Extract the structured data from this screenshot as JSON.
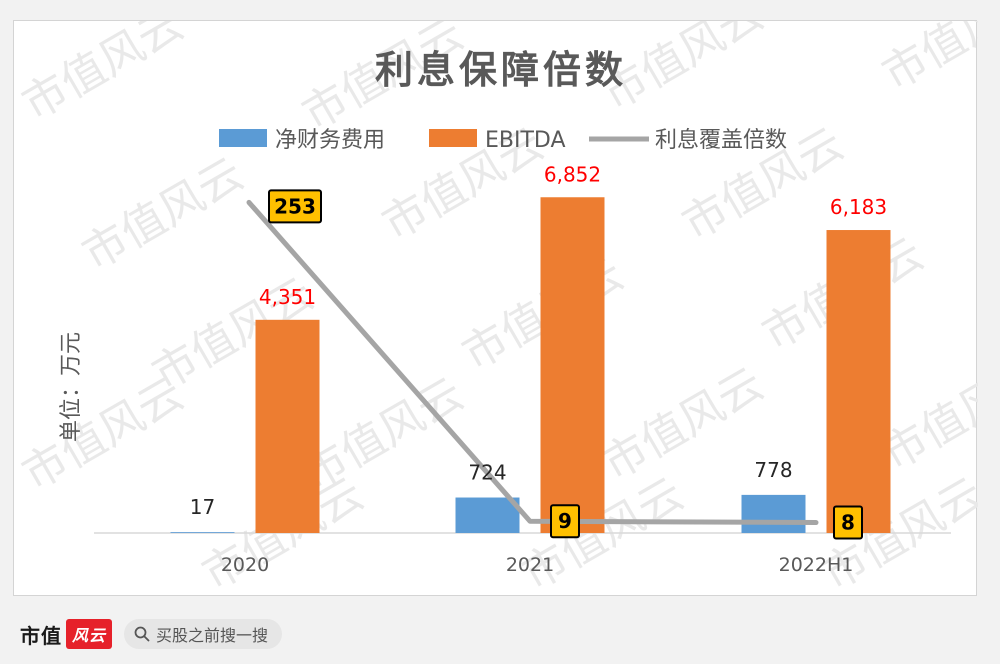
{
  "chart_data": {
    "type": "bar",
    "title": "利息保障倍数",
    "ylabel": "单位：万元",
    "categories": [
      "2020",
      "2021",
      "2022H1"
    ],
    "series": [
      {
        "name": "净财务费用",
        "kind": "bar",
        "color": "#5b9bd5",
        "values": [
          17,
          724,
          778
        ],
        "labels": [
          "17",
          "724",
          "778"
        ]
      },
      {
        "name": "EBITDA",
        "kind": "bar",
        "color": "#ed7d31",
        "values": [
          4351,
          6852,
          6183
        ],
        "labels": [
          "4,351",
          "6,852",
          "6,183"
        ]
      },
      {
        "name": "利息覆盖倍数",
        "kind": "line",
        "color": "#a5a5a5",
        "values": [
          253,
          9,
          8
        ],
        "labels": [
          "253",
          "9",
          "8"
        ]
      }
    ],
    "ylim": [
      0,
      8000
    ],
    "y2lim": [
      0,
      300
    ],
    "grid": false,
    "legend": "top",
    "label_colors": {
      "EBITDA": "#ff0000",
      "净财务费用": "#262626",
      "marker_fill": "#ffc000"
    }
  },
  "watermark_text": "市值风云",
  "footer": {
    "brand": "市值",
    "brand_logo": "风云",
    "search_placeholder": "买股之前搜一搜"
  }
}
